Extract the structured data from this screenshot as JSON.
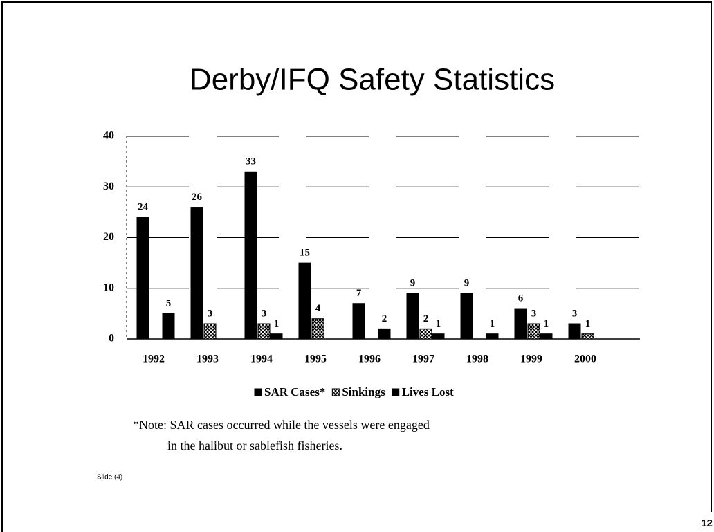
{
  "chart_data": {
    "type": "bar",
    "title": "Derby/IFQ Safety Statistics",
    "categories": [
      "1992",
      "1993",
      "1994",
      "1995",
      "1996",
      "1997",
      "1998",
      "1999",
      "2000"
    ],
    "series": [
      {
        "name": "SAR Cases*",
        "color": "#000000",
        "values": [
          24,
          26,
          33,
          15,
          7,
          9,
          9,
          6,
          3
        ]
      },
      {
        "name": "Sinkings",
        "color": "hatch",
        "values": [
          null,
          3,
          3,
          4,
          null,
          2,
          null,
          3,
          1
        ]
      },
      {
        "name": "Lives Lost",
        "color": "#000000",
        "values": [
          5,
          null,
          1,
          null,
          2,
          1,
          1,
          1,
          null
        ]
      }
    ],
    "ylim": [
      0,
      40
    ],
    "yticks": [
      0,
      10,
      20,
      30,
      40
    ],
    "grid": true,
    "note": [
      "*Note: SAR cases occurred while the vessels were engaged",
      "in the halibut or sablefish fisheries."
    ],
    "source": "Slide (4)",
    "page_number": "12"
  }
}
